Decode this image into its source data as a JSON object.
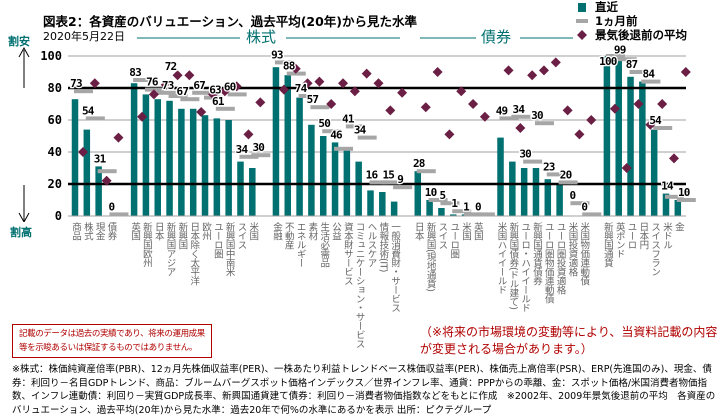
{
  "header": {
    "title": "図表2：各資産のバリュエーション、過去平均(20年)から見た水準",
    "date": "2020年5月22日",
    "section_stocks": "株式",
    "section_bonds": "債券",
    "label_cheap": "割安",
    "label_expensive": "割高"
  },
  "legend": {
    "latest": "直近",
    "month_ago": "1ヵ月前",
    "pre_recession": "景気後退前の平均"
  },
  "colors": {
    "bar": "#007070",
    "dash": "#a6a6a6",
    "diamond": "#6b1f45",
    "threshold": "#000000",
    "grid": "#a0a0a0",
    "note": "#b00000"
  },
  "chart_data": {
    "type": "bar",
    "ylim": [
      0,
      100
    ],
    "yticks": [
      "0",
      "20",
      "40",
      "60",
      "80",
      "100"
    ],
    "threshold_lines": [
      20,
      80
    ],
    "grid": true,
    "legend_placement": "top-right",
    "groups": [
      {
        "categories": [
          "商品",
          "株式",
          "現金",
          "債券"
        ],
        "latest": [
          73,
          54,
          31,
          0
        ],
        "month_ago": [
          78,
          61,
          28,
          1
        ],
        "pre_recession": [
          40,
          83,
          22,
          49
        ]
      },
      {
        "categories": [
          "英国",
          "新興国欧州",
          "日本",
          "新興国アジア",
          "新興国",
          "日本除く太平洋",
          "欧州",
          "ユーロ圏",
          "新興国中南米",
          "スイス",
          "米国"
        ],
        "latest": [
          83,
          76,
          73,
          72,
          67,
          67,
          63,
          61,
          60,
          34,
          30
        ],
        "month_ago": [
          85,
          79,
          77,
          75,
          73,
          77,
          74,
          67,
          76,
          37,
          38
        ],
        "pre_recession": [
          62,
          76,
          82,
          88,
          88,
          65,
          76,
          78,
          81,
          51,
          71
        ]
      },
      {
        "categories": [
          "金融",
          "不動産",
          "エネルギー",
          "素材",
          "生活必需品",
          "公益",
          "資本財サービス",
          "コミュニケーション・サービス",
          "ヘルスケア",
          "情報技術(IT)",
          "一般消費財・サービス"
        ],
        "latest": [
          93,
          88,
          74,
          57,
          50,
          46,
          41,
          34,
          16,
          15,
          9
        ],
        "month_ago": [
          96,
          89,
          75,
          68,
          53,
          42,
          56,
          49,
          21,
          21,
          18
        ],
        "pre_recession": [
          79,
          92,
          83,
          84,
          70,
          83,
          78,
          89,
          83,
          66,
          77
        ]
      },
      {
        "categories": [
          "日本",
          "新興国(現地通貨)",
          "スイス",
          "ユーロ圏",
          "米国",
          "英国"
        ],
        "latest": [
          28,
          10,
          5,
          1,
          1,
          0
        ],
        "month_ago": [
          28,
          10,
          8,
          3,
          1,
          1
        ],
        "pre_recession": [
          68,
          90,
          51,
          78,
          70,
          62
        ]
      },
      {
        "categories": [
          "米国ハイイールド",
          "新興国債券(ドル建て)",
          "ユーロ・ハイイールド",
          "新興国通貨債券",
          "ユーロ圏物価連動債",
          "ユーロ圏投資適格",
          "米国投資適格",
          "米国物価連動債"
        ],
        "latest": [
          49,
          34,
          30,
          30,
          23,
          20,
          0,
          0
        ],
        "month_ago": [
          61,
          62,
          34,
          58,
          26,
          21,
          8,
          1
        ],
        "pre_recession": [
          91,
          55,
          88,
          91,
          96,
          66,
          51,
          60
        ]
      },
      {
        "categories": [
          "新興国通貨",
          "英ポンド",
          "ユーロ",
          "日本円",
          "スイスフラン",
          "米ドル",
          "金"
        ],
        "latest": [
          100,
          99,
          87,
          84,
          54,
          14,
          10
        ],
        "month_ago": [
          100,
          98,
          90,
          84,
          55,
          12,
          10
        ],
        "pre_recession": [
          67,
          30,
          70,
          57,
          70,
          36,
          90
        ]
      }
    ]
  },
  "notes": {
    "disclaimer": "記載のデータは過去の実績であり、将来の運用成果等を示唆あるいは保証するものではありません。",
    "warning": "（※将来の市場環境の変動等により、当資料記載の内容が変更される場合があります。）",
    "footnote": "※株式：株価純資産倍率(PBR)、12ヵ月先株価収益率(PER)、一株あたり利益トレンドベース株価収益率(PER)、株価売上高倍率(PSR)、ERP(先進国のみ)、現金、債券：利回り－名目GDPトレンド、商品：ブルームバーグスポット価格インデックス／世界インフレ率、通貨：PPPからの乖離、金：スポット価格/米国消費者物価指数、インフレ連動債：利回り－実質GDP成長率、新興国通貨建て債券：利回り－消費者物価指数などをもとに作成　※2002年、2009年景気後退前の平均　各資産のバリュエーション、過去平均(20年)から見た水準：過去20年で何%の水準にあるかを表示 出所：ピクテグループ"
  }
}
